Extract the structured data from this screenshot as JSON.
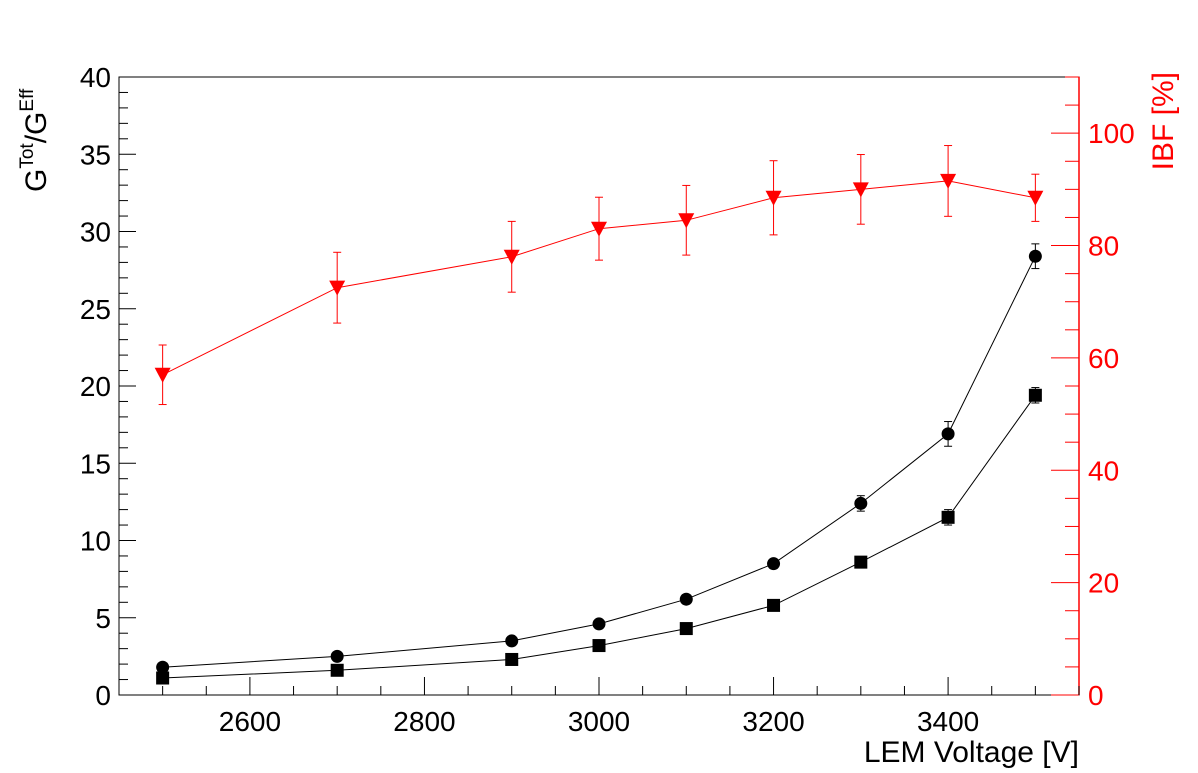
{
  "chart_data": {
    "type": "line",
    "title": "",
    "xlabel": "LEM Voltage [V]",
    "ylabel": {
      "base1": "G",
      "sup1": "Tot",
      "sep": "/",
      "base2": "G",
      "sup2": "Eff"
    },
    "y2label": "IBF [%]",
    "xlim": [
      2450,
      3550
    ],
    "ylim": [
      0,
      40
    ],
    "y2lim": [
      0,
      110
    ],
    "x_ticks": [
      2600,
      2800,
      3000,
      3200,
      3400
    ],
    "y_ticks": [
      0,
      5,
      10,
      15,
      20,
      25,
      30,
      35,
      40
    ],
    "y2_ticks": [
      0,
      20,
      40,
      60,
      80,
      100
    ],
    "grid": false,
    "legend": "none",
    "x": [
      2500,
      2700,
      2900,
      3000,
      3100,
      3200,
      3300,
      3400,
      3500
    ],
    "series": [
      {
        "marker": "circle",
        "axis": "left",
        "color": "#000000",
        "values": [
          1.8,
          2.5,
          3.5,
          4.6,
          6.2,
          8.5,
          12.4,
          16.9,
          28.4
        ],
        "errors": [
          0.15,
          0.2,
          0.2,
          0.2,
          0.3,
          0.3,
          0.5,
          0.8,
          0.8
        ]
      },
      {
        "marker": "square",
        "axis": "left",
        "color": "#000000",
        "values": [
          1.1,
          1.6,
          2.3,
          3.2,
          4.3,
          5.8,
          8.6,
          11.5,
          19.4
        ],
        "errors": [
          0.1,
          0.1,
          0.15,
          0.15,
          0.2,
          0.2,
          0.3,
          0.5,
          0.5
        ]
      },
      {
        "marker": "triangle-down",
        "axis": "right",
        "color": "#ff0000",
        "values": [
          57,
          72.5,
          78,
          83,
          84.5,
          88.5,
          90,
          91.5,
          88.5
        ],
        "errors": [
          5.3,
          6.3,
          6.3,
          5.6,
          6.2,
          6.6,
          6.2,
          6.3,
          4.2
        ]
      }
    ]
  }
}
